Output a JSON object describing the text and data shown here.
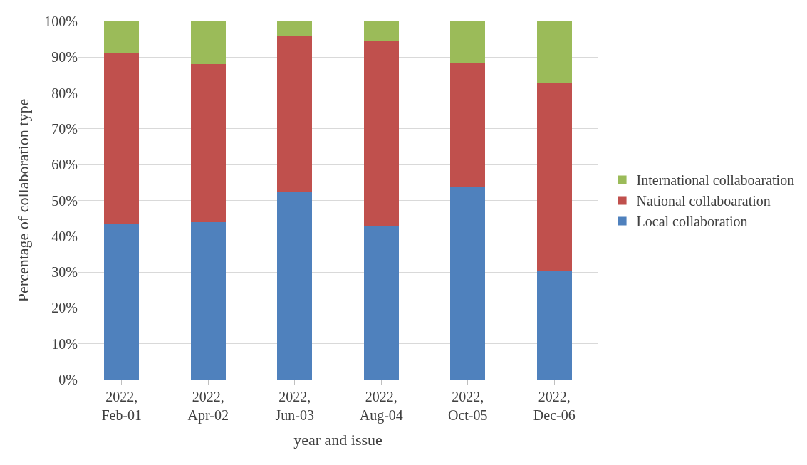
{
  "chart_data": {
    "type": "bar",
    "stacked": true,
    "xlabel": "year and issue",
    "ylabel": "Percentage of collaboration type",
    "categories": [
      "2022,\nFeb-01",
      "2022,\nApr-02",
      "2022,\nJun-03",
      "2022,\nAug-04",
      "2022,\nOct-05",
      "2022,\nDec-06"
    ],
    "series": [
      {
        "name": "Local collaboration",
        "color": "#4f81bd",
        "values": [
          43.4,
          44.0,
          52.2,
          43.0,
          53.9,
          30.3
        ]
      },
      {
        "name": "National collaboaration",
        "color": "#c0504d",
        "values": [
          47.8,
          44.1,
          43.8,
          51.4,
          34.6,
          52.4
        ]
      },
      {
        "name": "International collaboaration",
        "color": "#9bbb59",
        "values": [
          8.8,
          11.9,
          4.0,
          5.6,
          11.5,
          17.3
        ]
      }
    ],
    "ylim": [
      0,
      100
    ],
    "yticks": [
      {
        "value": 0,
        "label": "0%"
      },
      {
        "value": 10,
        "label": "10%"
      },
      {
        "value": 20,
        "label": "20%"
      },
      {
        "value": 30,
        "label": "30%"
      },
      {
        "value": 40,
        "label": "40%"
      },
      {
        "value": 50,
        "label": "50%"
      },
      {
        "value": 60,
        "label": "60%"
      },
      {
        "value": 70,
        "label": "70%"
      },
      {
        "value": 80,
        "label": "80%"
      },
      {
        "value": 90,
        "label": "90%"
      },
      {
        "value": 100,
        "label": "100%"
      }
    ],
    "grid": "y",
    "legend": "right"
  }
}
